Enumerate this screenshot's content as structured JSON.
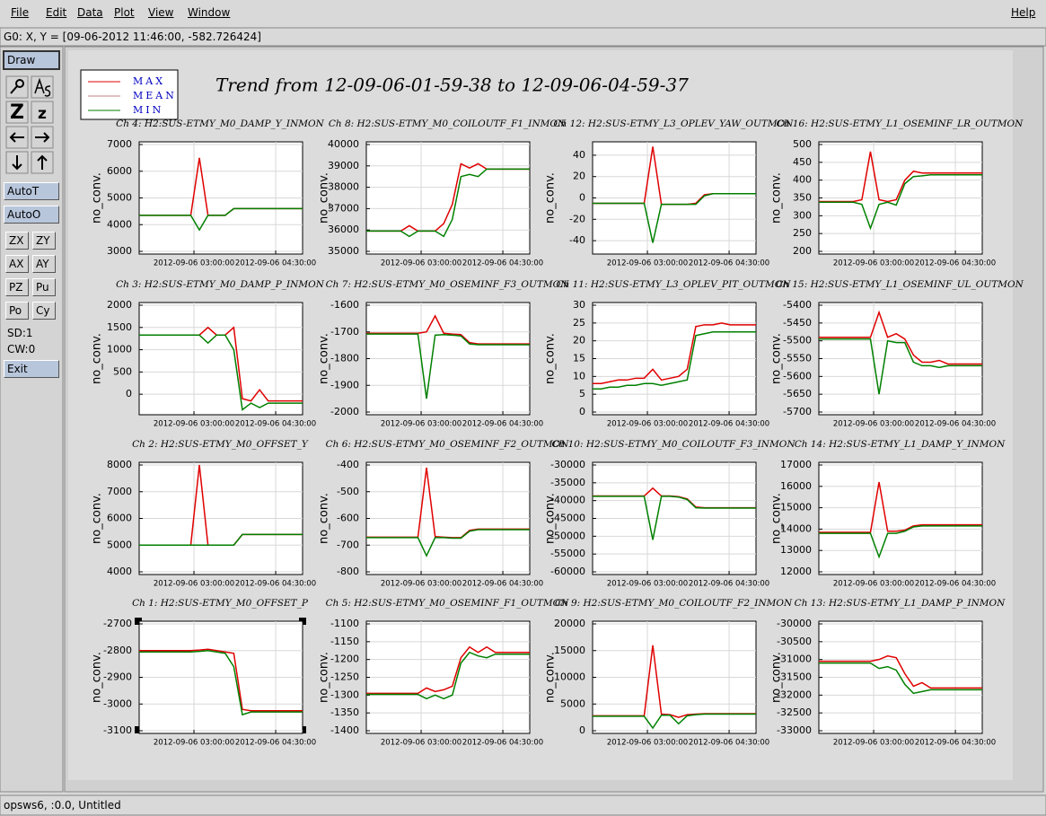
{
  "menu": [
    "File",
    "Edit",
    "Data",
    "Plot",
    "View",
    "Window"
  ],
  "help": "Help",
  "coords": "G0: X, Y = [09-06-2012 11:46:00, -582.726424]",
  "toolbar": {
    "draw": "Draw",
    "zoom_in": "Z",
    "zoom_out": "z",
    "buttons": [
      "AutoT",
      "AutoO"
    ],
    "pairs": [
      [
        "ZX",
        "ZY"
      ],
      [
        "AX",
        "AY"
      ],
      [
        "PZ",
        "Pu"
      ],
      [
        "Po",
        "Cy"
      ]
    ],
    "info": [
      "SD:1",
      "CW:0"
    ],
    "exit": "Exit"
  },
  "status": "opsws6, :0.0, Untitled",
  "legend": [
    {
      "name": "MAX",
      "color": "#e00000"
    },
    {
      "name": "MEAN",
      "color": "#c08080"
    },
    {
      "name": "MIN",
      "color": "#008000"
    }
  ],
  "title": "Trend from 12-09-06-01-59-38 to 12-09-06-04-59-37",
  "plots": {
    "ylabel": "no_conv.",
    "xlim": [
      "2012-09-06 01:59:38",
      "2012-09-06 04:59:37"
    ],
    "xticks": [
      "2012-09-06 03:00:00",
      "2012-09-06 04:30:00"
    ],
    "panels": [
      {
        "title": "Ch 4: H2:SUS-ETMY_M0_DAMP_Y_INMON",
        "ylim": [
          3000,
          7000
        ],
        "yticks": [
          3000,
          4000,
          5000,
          6000,
          7000
        ],
        "max": [
          4350,
          4350,
          4350,
          4350,
          4350,
          4350,
          4350,
          6500,
          4350,
          4350,
          4350,
          4600,
          4600,
          4600,
          4600,
          4600,
          4600,
          4600,
          4600,
          4600
        ],
        "min": [
          4350,
          4350,
          4350,
          4350,
          4350,
          4350,
          4350,
          3800,
          4350,
          4350,
          4350,
          4600,
          4600,
          4600,
          4600,
          4600,
          4600,
          4600,
          4600,
          4600
        ]
      },
      {
        "title": "Ch 8: H2:SUS-ETMY_M0_COILOUTF_F1_INMON",
        "ylim": [
          35000,
          40000
        ],
        "yticks": [
          35000,
          36000,
          37000,
          38000,
          39000,
          40000
        ],
        "max": [
          35950,
          35950,
          35950,
          35950,
          35950,
          36200,
          35950,
          35950,
          35950,
          36300,
          37200,
          39100,
          38900,
          39100,
          38850,
          38850,
          38850,
          38850,
          38850,
          38850
        ],
        "min": [
          35950,
          35950,
          35950,
          35950,
          35950,
          35700,
          35950,
          35950,
          35950,
          35700,
          36500,
          38500,
          38600,
          38500,
          38850,
          38850,
          38850,
          38850,
          38850,
          38850
        ]
      },
      {
        "title": "Ch 12: H2:SUS-ETMY_L3_OPLEV_YAW_OUTMON",
        "ylim": [
          -50,
          50
        ],
        "yticks": [
          -40,
          -20,
          0,
          20,
          40
        ],
        "max": [
          -5,
          -5,
          -5,
          -5,
          -5,
          -5,
          -5,
          48,
          -6,
          -6,
          -6,
          -6,
          -5,
          3,
          4,
          4,
          4,
          4,
          4,
          4
        ],
        "min": [
          -5,
          -5,
          -5,
          -5,
          -5,
          -5,
          -5,
          -42,
          -6,
          -6,
          -6,
          -6,
          -6,
          2,
          4,
          4,
          4,
          4,
          4,
          4
        ]
      },
      {
        "title": "Ch 16: H2:SUS-ETMY_L1_OSEMINF_LR_OUTMON",
        "ylim": [
          200,
          500
        ],
        "yticks": [
          200,
          250,
          300,
          350,
          400,
          450,
          500
        ],
        "max": [
          340,
          340,
          340,
          340,
          340,
          345,
          480,
          345,
          340,
          345,
          400,
          425,
          420,
          420,
          420,
          420,
          420,
          420,
          420,
          420
        ],
        "min": [
          338,
          338,
          338,
          338,
          338,
          332,
          265,
          332,
          338,
          330,
          390,
          410,
          412,
          415,
          415,
          415,
          415,
          415,
          415,
          415
        ]
      },
      {
        "title": "Ch 3: H2:SUS-ETMY_M0_DAMP_P_INMON",
        "ylim": [
          -400,
          2000
        ],
        "yticks": [
          0,
          500,
          1000,
          1500,
          2000
        ],
        "max": [
          1330,
          1330,
          1330,
          1330,
          1330,
          1330,
          1330,
          1330,
          1500,
          1330,
          1330,
          1500,
          -100,
          -150,
          100,
          -150,
          -150,
          -150,
          -150,
          -150
        ],
        "min": [
          1330,
          1330,
          1330,
          1330,
          1330,
          1330,
          1330,
          1330,
          1150,
          1330,
          1330,
          1000,
          -350,
          -200,
          -300,
          -200,
          -200,
          -200,
          -200,
          -200
        ]
      },
      {
        "title": "Ch 7: H2:SUS-ETMY_M0_OSEMINF_F3_OUTMON",
        "ylim": [
          -2000,
          -1600
        ],
        "yticks": [
          -2000,
          -1900,
          -1800,
          -1700,
          -1600
        ],
        "max": [
          -1705,
          -1705,
          -1705,
          -1705,
          -1705,
          -1705,
          -1705,
          -1700,
          -1640,
          -1705,
          -1708,
          -1710,
          -1740,
          -1745,
          -1745,
          -1745,
          -1745,
          -1745,
          -1745,
          -1745
        ],
        "min": [
          -1708,
          -1708,
          -1708,
          -1708,
          -1708,
          -1708,
          -1708,
          -1950,
          -1712,
          -1710,
          -1712,
          -1715,
          -1745,
          -1748,
          -1748,
          -1748,
          -1748,
          -1748,
          -1748,
          -1748
        ]
      },
      {
        "title": "Ch 11: H2:SUS-ETMY_L3_OPLEV_PIT_OUTMON",
        "ylim": [
          0,
          30
        ],
        "yticks": [
          0,
          5,
          10,
          15,
          20,
          25,
          30
        ],
        "max": [
          8,
          8,
          8.5,
          9,
          9,
          9.5,
          9.5,
          12,
          9,
          9.5,
          10,
          12,
          24,
          24.5,
          24.5,
          25,
          24.5,
          24.5,
          24.5,
          24.5
        ],
        "min": [
          6.5,
          6.5,
          7,
          7,
          7.5,
          7.5,
          8,
          8,
          7.5,
          8,
          8.5,
          9,
          21.5,
          22,
          22.5,
          22.5,
          22.5,
          22.5,
          22.5,
          22.5
        ]
      },
      {
        "title": "Ch 15: H2:SUS-ETMY_L1_OSEMINF_UL_OUTMON",
        "ylim": [
          -5700,
          -5400
        ],
        "yticks": [
          -5700,
          -5650,
          -5600,
          -5550,
          -5500,
          -5450,
          -5400
        ],
        "max": [
          -5490,
          -5490,
          -5490,
          -5490,
          -5490,
          -5490,
          -5490,
          -5420,
          -5490,
          -5480,
          -5495,
          -5540,
          -5560,
          -5560,
          -5555,
          -5565,
          -5565,
          -5565,
          -5565,
          -5565
        ],
        "min": [
          -5495,
          -5495,
          -5495,
          -5495,
          -5495,
          -5495,
          -5495,
          -5650,
          -5500,
          -5505,
          -5505,
          -5560,
          -5570,
          -5570,
          -5575,
          -5570,
          -5570,
          -5570,
          -5570,
          -5570
        ]
      },
      {
        "title": "Ch 2: H2:SUS-ETMY_M0_OFFSET_Y",
        "ylim": [
          4000,
          8000
        ],
        "yticks": [
          4000,
          5000,
          6000,
          7000,
          8000
        ],
        "max": [
          5000,
          5000,
          5000,
          5000,
          5000,
          5000,
          5000,
          8000,
          5000,
          5000,
          5000,
          5000,
          5400,
          5400,
          5400,
          5400,
          5400,
          5400,
          5400,
          5400
        ],
        "min": [
          5000,
          5000,
          5000,
          5000,
          5000,
          5000,
          5000,
          5000,
          5000,
          5000,
          5000,
          5000,
          5400,
          5400,
          5400,
          5400,
          5400,
          5400,
          5400,
          5400
        ]
      },
      {
        "title": "Ch 6: H2:SUS-ETMY_M0_OSEMINF_F2_OUTMON",
        "ylim": [
          -800,
          -400
        ],
        "yticks": [
          -800,
          -700,
          -600,
          -500,
          -400
        ],
        "max": [
          -670,
          -670,
          -670,
          -670,
          -670,
          -670,
          -670,
          -410,
          -668,
          -670,
          -672,
          -672,
          -645,
          -640,
          -640,
          -640,
          -640,
          -640,
          -640,
          -640
        ],
        "min": [
          -672,
          -672,
          -672,
          -672,
          -672,
          -672,
          -672,
          -740,
          -672,
          -672,
          -674,
          -674,
          -648,
          -642,
          -642,
          -642,
          -642,
          -642,
          -642,
          -642
        ]
      },
      {
        "title": "Ch 10: H2:SUS-ETMY_M0_COILOUTF_F3_INMON",
        "ylim": [
          -60000,
          -30000
        ],
        "yticks": [
          -60000,
          -55000,
          -50000,
          -45000,
          -40000,
          -35000,
          -30000
        ],
        "max": [
          -38700,
          -38700,
          -38700,
          -38700,
          -38700,
          -38700,
          -38700,
          -36500,
          -38700,
          -38700,
          -38900,
          -39500,
          -41800,
          -42000,
          -42000,
          -42000,
          -42000,
          -42000,
          -42000,
          -42000
        ],
        "min": [
          -38800,
          -38800,
          -38800,
          -38800,
          -38800,
          -38800,
          -38800,
          -51000,
          -38800,
          -38800,
          -39000,
          -39700,
          -42000,
          -42100,
          -42100,
          -42100,
          -42100,
          -42100,
          -42100,
          -42100
        ]
      },
      {
        "title": "Ch 14: H2:SUS-ETMY_L1_DAMP_Y_INMON",
        "ylim": [
          12000,
          17000
        ],
        "yticks": [
          12000,
          13000,
          14000,
          15000,
          16000,
          17000
        ],
        "max": [
          13850,
          13850,
          13850,
          13850,
          13850,
          13850,
          13850,
          16200,
          13900,
          13900,
          13950,
          14150,
          14200,
          14200,
          14200,
          14200,
          14200,
          14200,
          14200,
          14200
        ],
        "min": [
          13800,
          13800,
          13800,
          13800,
          13800,
          13800,
          13800,
          12700,
          13800,
          13800,
          13900,
          14100,
          14150,
          14150,
          14150,
          14150,
          14150,
          14150,
          14150,
          14150
        ]
      },
      {
        "title": "Ch 1: H2:SUS-ETMY_M0_OFFSET_P",
        "ylim": [
          -3100,
          -2700
        ],
        "yticks": [
          -3100,
          -3000,
          -2900,
          -2800,
          -2700
        ],
        "max": [
          -2800,
          -2800,
          -2800,
          -2800,
          -2800,
          -2800,
          -2800,
          -2798,
          -2795,
          -2800,
          -2805,
          -2810,
          -3020,
          -3025,
          -3025,
          -3025,
          -3025,
          -3025,
          -3025,
          -3025
        ],
        "min": [
          -2805,
          -2805,
          -2805,
          -2805,
          -2805,
          -2805,
          -2805,
          -2803,
          -2800,
          -2805,
          -2810,
          -2860,
          -3040,
          -3030,
          -3030,
          -3030,
          -3030,
          -3030,
          -3030,
          -3030
        ]
      },
      {
        "title": "Ch 5: H2:SUS-ETMY_M0_OSEMINF_F1_OUTMON",
        "ylim": [
          -1400,
          -1100
        ],
        "yticks": [
          -1400,
          -1350,
          -1300,
          -1250,
          -1200,
          -1150,
          -1100
        ],
        "max": [
          -1295,
          -1295,
          -1295,
          -1295,
          -1295,
          -1295,
          -1295,
          -1280,
          -1290,
          -1285,
          -1275,
          -1195,
          -1165,
          -1180,
          -1165,
          -1180,
          -1180,
          -1180,
          -1180,
          -1180
        ],
        "min": [
          -1298,
          -1298,
          -1298,
          -1298,
          -1298,
          -1298,
          -1298,
          -1310,
          -1300,
          -1310,
          -1300,
          -1210,
          -1180,
          -1190,
          -1195,
          -1185,
          -1185,
          -1185,
          -1185,
          -1185
        ]
      },
      {
        "title": "Ch 9: H2:SUS-ETMY_M0_COILOUTF_F2_INMON",
        "ylim": [
          0,
          20000
        ],
        "yticks": [
          0,
          5000,
          10000,
          15000,
          20000
        ],
        "max": [
          2800,
          2800,
          2800,
          2800,
          2800,
          2800,
          2800,
          16000,
          3100,
          3000,
          2500,
          3000,
          3100,
          3200,
          3200,
          3200,
          3200,
          3200,
          3200,
          3200
        ],
        "min": [
          2700,
          2700,
          2700,
          2700,
          2700,
          2700,
          2700,
          500,
          2900,
          2900,
          1300,
          2800,
          3000,
          3100,
          3100,
          3100,
          3100,
          3100,
          3100,
          3100
        ]
      },
      {
        "title": "Ch 13: H2:SUS-ETMY_L1_DAMP_P_INMON",
        "ylim": [
          -33000,
          -30000
        ],
        "yticks": [
          -33000,
          -32500,
          -32000,
          -31500,
          -31000,
          -30500,
          -30000
        ],
        "max": [
          -31050,
          -31050,
          -31050,
          -31050,
          -31050,
          -31050,
          -31050,
          -31000,
          -30900,
          -30950,
          -31400,
          -31750,
          -31650,
          -31800,
          -31800,
          -31800,
          -31800,
          -31800,
          -31800,
          -31800
        ],
        "min": [
          -31100,
          -31100,
          -31100,
          -31100,
          -31100,
          -31100,
          -31100,
          -31250,
          -31200,
          -31300,
          -31700,
          -31950,
          -31900,
          -31850,
          -31850,
          -31850,
          -31850,
          -31850,
          -31850,
          -31850
        ]
      }
    ]
  }
}
